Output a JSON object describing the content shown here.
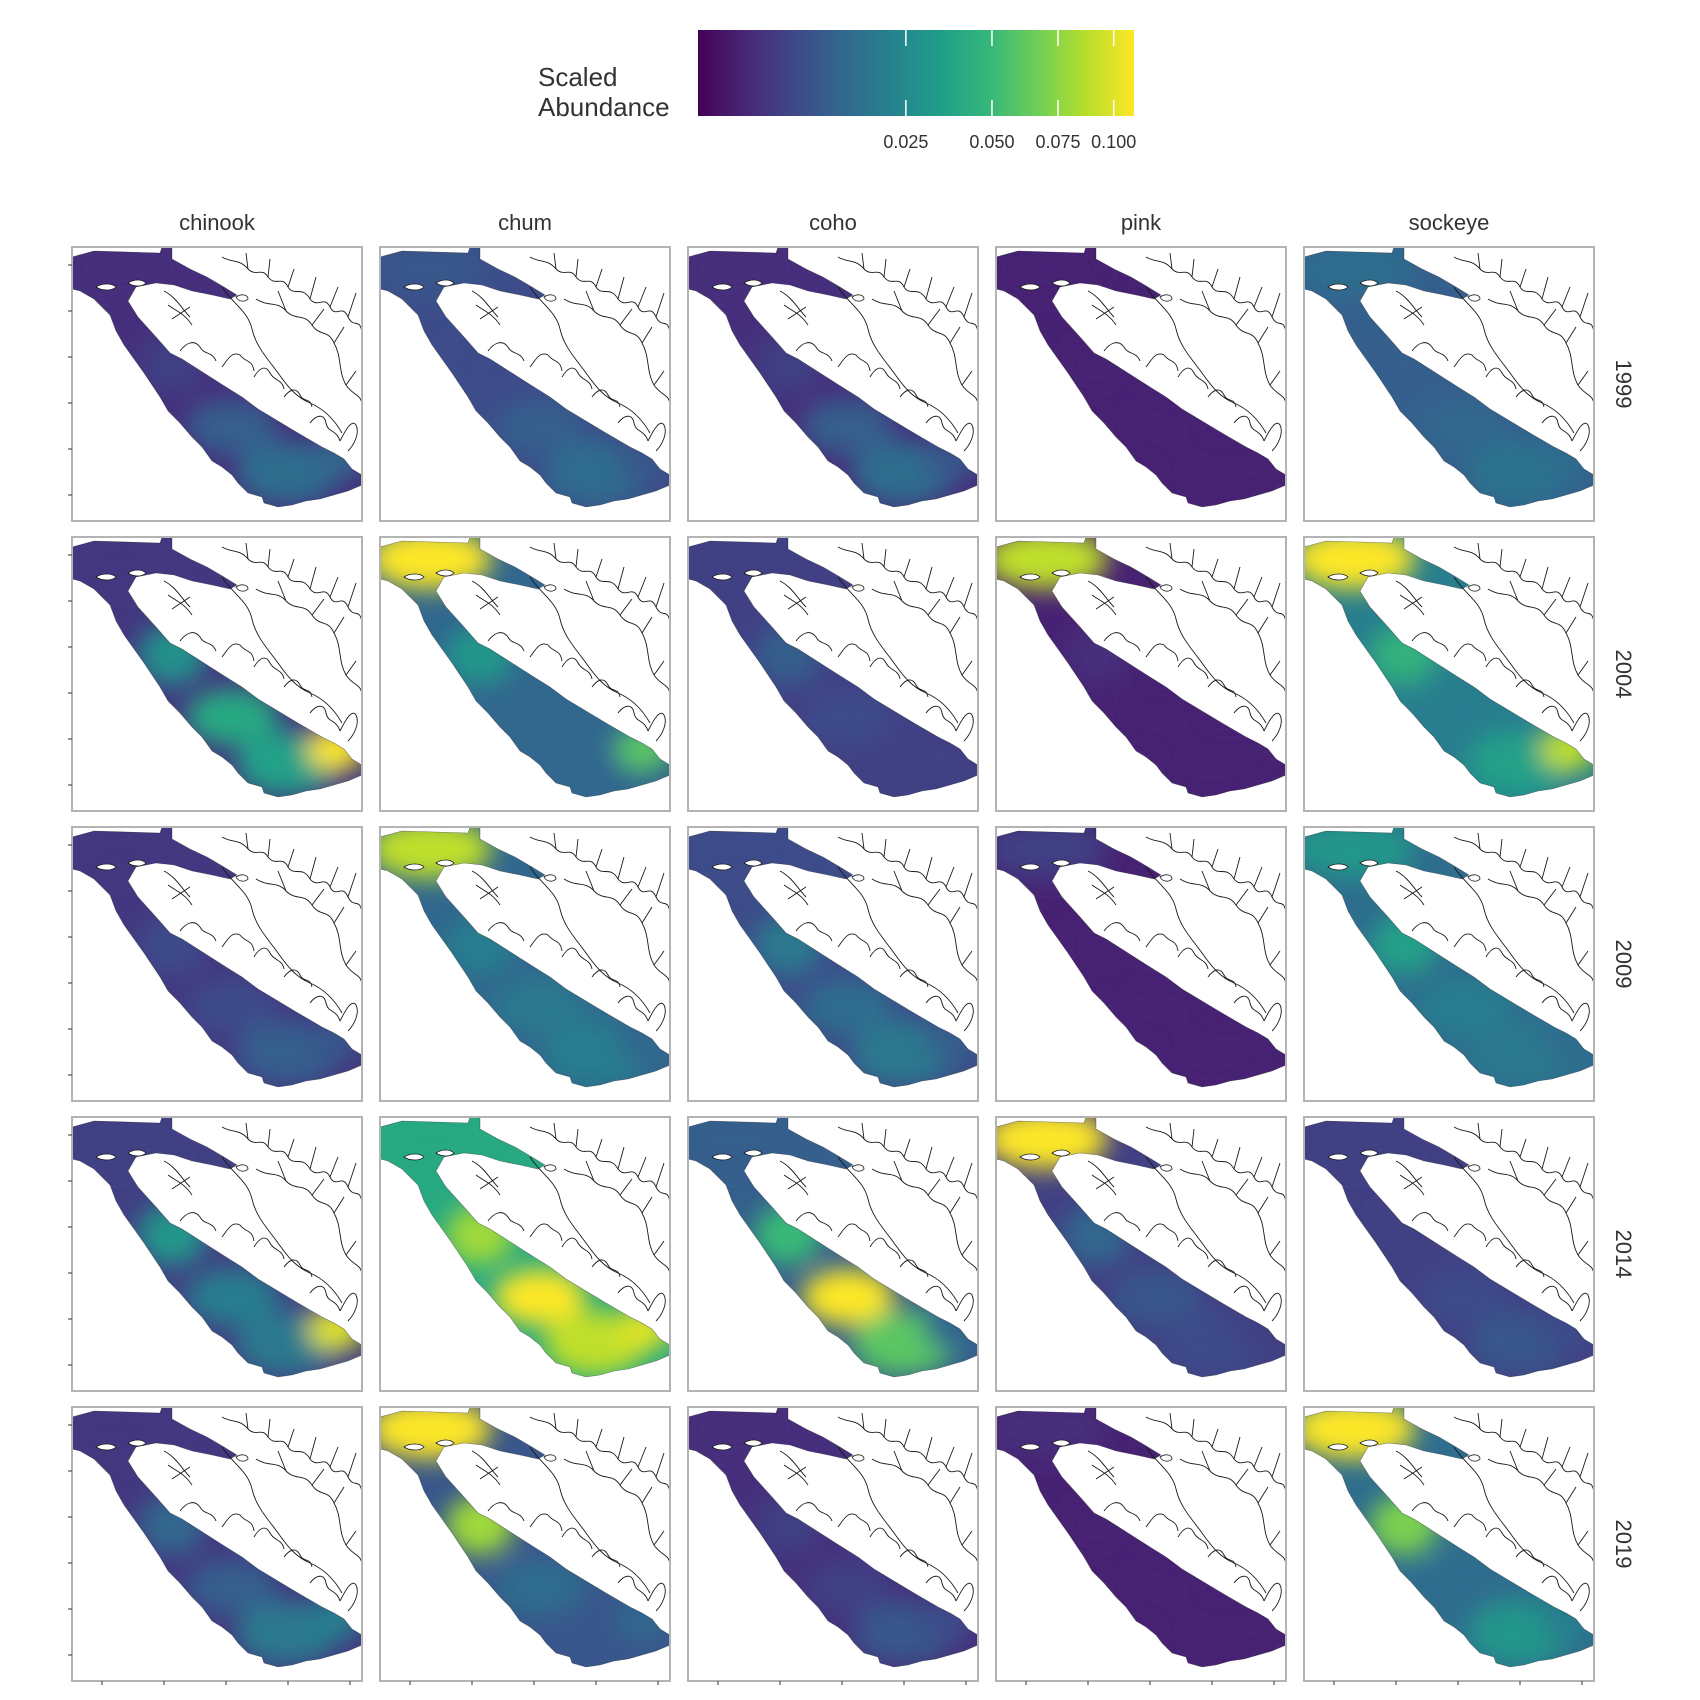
{
  "legend": {
    "title_line1": "Scaled",
    "title_line2": "Abundance",
    "ticks": [
      {
        "label": "0.025",
        "value": 0.025
      },
      {
        "label": "0.050",
        "value": 0.05
      },
      {
        "label": "0.075",
        "value": 0.075
      },
      {
        "label": "0.100",
        "value": 0.1
      }
    ],
    "palette": "viridis",
    "scale": "sqrt",
    "range": [
      0,
      0.11
    ]
  },
  "columns": [
    "chinook",
    "chum",
    "coho",
    "pink",
    "sockeye"
  ],
  "rows": [
    "1999",
    "2004",
    "2009",
    "2014",
    "2019"
  ],
  "colors": {
    "panel_border": "#b3b3b3",
    "coastline": "#1a1a1a",
    "viridis_low": "#440154",
    "viridis_high": "#fde725"
  },
  "chart_data": {
    "type": "heatmap",
    "description_units": "scaled abundance (hotspot levels per region)",
    "regions": [
      "north_channel",
      "mid_channel",
      "central_strait",
      "south_strait",
      "southeast_inlet"
    ],
    "cells": [
      {
        "row": "1999",
        "col": "chinook",
        "levels": {
          "north_channel": 0.002,
          "mid_channel": 0.004,
          "central_strait": 0.01,
          "south_strait": 0.014,
          "southeast_inlet": 0.012
        }
      },
      {
        "row": "1999",
        "col": "chum",
        "levels": {
          "north_channel": 0.008,
          "mid_channel": 0.006,
          "central_strait": 0.01,
          "south_strait": 0.014,
          "southeast_inlet": 0.008
        }
      },
      {
        "row": "1999",
        "col": "coho",
        "levels": {
          "north_channel": 0.002,
          "mid_channel": 0.004,
          "central_strait": 0.01,
          "south_strait": 0.014,
          "southeast_inlet": 0.008
        }
      },
      {
        "row": "1999",
        "col": "pink",
        "levels": {
          "north_channel": 0.001,
          "mid_channel": 0.001,
          "central_strait": 0.001,
          "south_strait": 0.001,
          "southeast_inlet": 0.001
        }
      },
      {
        "row": "1999",
        "col": "sockeye",
        "levels": {
          "north_channel": 0.014,
          "mid_channel": 0.01,
          "central_strait": 0.012,
          "south_strait": 0.016,
          "southeast_inlet": 0.014
        }
      },
      {
        "row": "2004",
        "col": "chinook",
        "levels": {
          "north_channel": 0.003,
          "mid_channel": 0.028,
          "central_strait": 0.04,
          "south_strait": 0.035,
          "southeast_inlet": 0.11
        }
      },
      {
        "row": "2004",
        "col": "chum",
        "levels": {
          "north_channel": 0.11,
          "mid_channel": 0.03,
          "central_strait": 0.012,
          "south_strait": 0.012,
          "southeast_inlet": 0.06
        }
      },
      {
        "row": "2004",
        "col": "coho",
        "levels": {
          "north_channel": 0.004,
          "mid_channel": 0.01,
          "central_strait": 0.006,
          "south_strait": 0.004,
          "southeast_inlet": 0.004
        }
      },
      {
        "row": "2004",
        "col": "pink",
        "levels": {
          "north_channel": 0.09,
          "mid_channel": 0.002,
          "central_strait": 0.001,
          "south_strait": 0.001,
          "southeast_inlet": 0.001
        }
      },
      {
        "row": "2004",
        "col": "sockeye",
        "levels": {
          "north_channel": 0.11,
          "mid_channel": 0.045,
          "central_strait": 0.02,
          "south_strait": 0.035,
          "southeast_inlet": 0.09
        }
      },
      {
        "row": "2009",
        "col": "chinook",
        "levels": {
          "north_channel": 0.003,
          "mid_channel": 0.006,
          "central_strait": 0.006,
          "south_strait": 0.01,
          "southeast_inlet": 0.008
        }
      },
      {
        "row": "2009",
        "col": "chum",
        "levels": {
          "north_channel": 0.09,
          "mid_channel": 0.02,
          "central_strait": 0.018,
          "south_strait": 0.02,
          "southeast_inlet": 0.012
        }
      },
      {
        "row": "2009",
        "col": "coho",
        "levels": {
          "north_channel": 0.006,
          "mid_channel": 0.018,
          "central_strait": 0.014,
          "south_strait": 0.018,
          "southeast_inlet": 0.01
        }
      },
      {
        "row": "2009",
        "col": "pink",
        "levels": {
          "north_channel": 0.004,
          "mid_channel": 0.001,
          "central_strait": 0.001,
          "south_strait": 0.001,
          "southeast_inlet": 0.001
        }
      },
      {
        "row": "2009",
        "col": "sockeye",
        "levels": {
          "north_channel": 0.03,
          "mid_channel": 0.035,
          "central_strait": 0.02,
          "south_strait": 0.018,
          "southeast_inlet": 0.014
        }
      },
      {
        "row": "2014",
        "col": "chinook",
        "levels": {
          "north_channel": 0.004,
          "mid_channel": 0.03,
          "central_strait": 0.02,
          "south_strait": 0.018,
          "southeast_inlet": 0.1
        }
      },
      {
        "row": "2014",
        "col": "chum",
        "levels": {
          "north_channel": 0.04,
          "mid_channel": 0.08,
          "central_strait": 0.11,
          "south_strait": 0.09,
          "southeast_inlet": 0.1
        }
      },
      {
        "row": "2014",
        "col": "coho",
        "levels": {
          "north_channel": 0.01,
          "mid_channel": 0.05,
          "central_strait": 0.11,
          "south_strait": 0.06,
          "southeast_inlet": 0.012
        }
      },
      {
        "row": "2014",
        "col": "pink",
        "levels": {
          "north_channel": 0.11,
          "mid_channel": 0.012,
          "central_strait": 0.008,
          "south_strait": 0.006,
          "southeast_inlet": 0.004
        }
      },
      {
        "row": "2014",
        "col": "sockeye",
        "levels": {
          "north_channel": 0.004,
          "mid_channel": 0.004,
          "central_strait": 0.006,
          "south_strait": 0.008,
          "southeast_inlet": 0.006
        }
      },
      {
        "row": "2019",
        "col": "chinook",
        "levels": {
          "north_channel": 0.003,
          "mid_channel": 0.012,
          "central_strait": 0.01,
          "south_strait": 0.018,
          "southeast_inlet": 0.02
        }
      },
      {
        "row": "2019",
        "col": "chum",
        "levels": {
          "north_channel": 0.11,
          "mid_channel": 0.08,
          "central_strait": 0.014,
          "south_strait": 0.008,
          "southeast_inlet": 0.012
        }
      },
      {
        "row": "2019",
        "col": "coho",
        "levels": {
          "north_channel": 0.002,
          "mid_channel": 0.004,
          "central_strait": 0.004,
          "south_strait": 0.008,
          "southeast_inlet": 0.006
        }
      },
      {
        "row": "2019",
        "col": "pink",
        "levels": {
          "north_channel": 0.002,
          "mid_channel": 0.001,
          "central_strait": 0.001,
          "south_strait": 0.001,
          "southeast_inlet": 0.001
        }
      },
      {
        "row": "2019",
        "col": "sockeye",
        "levels": {
          "north_channel": 0.11,
          "mid_channel": 0.07,
          "central_strait": 0.014,
          "south_strait": 0.03,
          "southeast_inlet": 0.02
        }
      }
    ]
  }
}
